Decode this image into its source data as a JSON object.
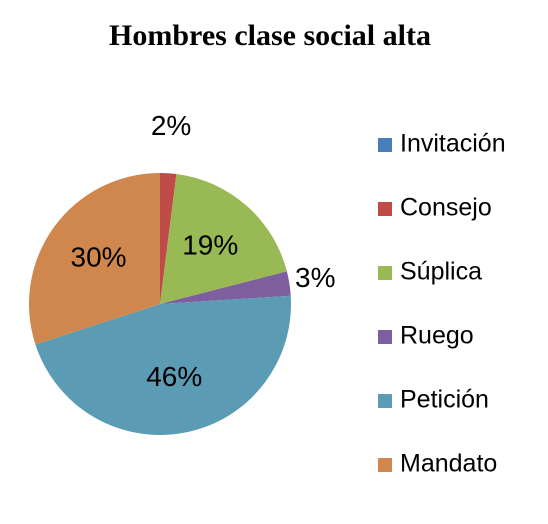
{
  "chart_data": {
    "type": "pie",
    "title": "Hombres clase social alta",
    "categories": [
      "Invitación",
      "Consejo",
      "Súplica",
      "Ruego",
      "Petición",
      "Mandato"
    ],
    "values": [
      0,
      2,
      19,
      3,
      46,
      30
    ],
    "value_labels": [
      null,
      "2%",
      "19%",
      "3%",
      "46%",
      "30%"
    ],
    "colors": [
      "#4a7ebb",
      "#be4b48",
      "#98b954",
      "#7d5fa0",
      "#5b9bb3",
      "#d0874d"
    ],
    "legend": "right"
  }
}
